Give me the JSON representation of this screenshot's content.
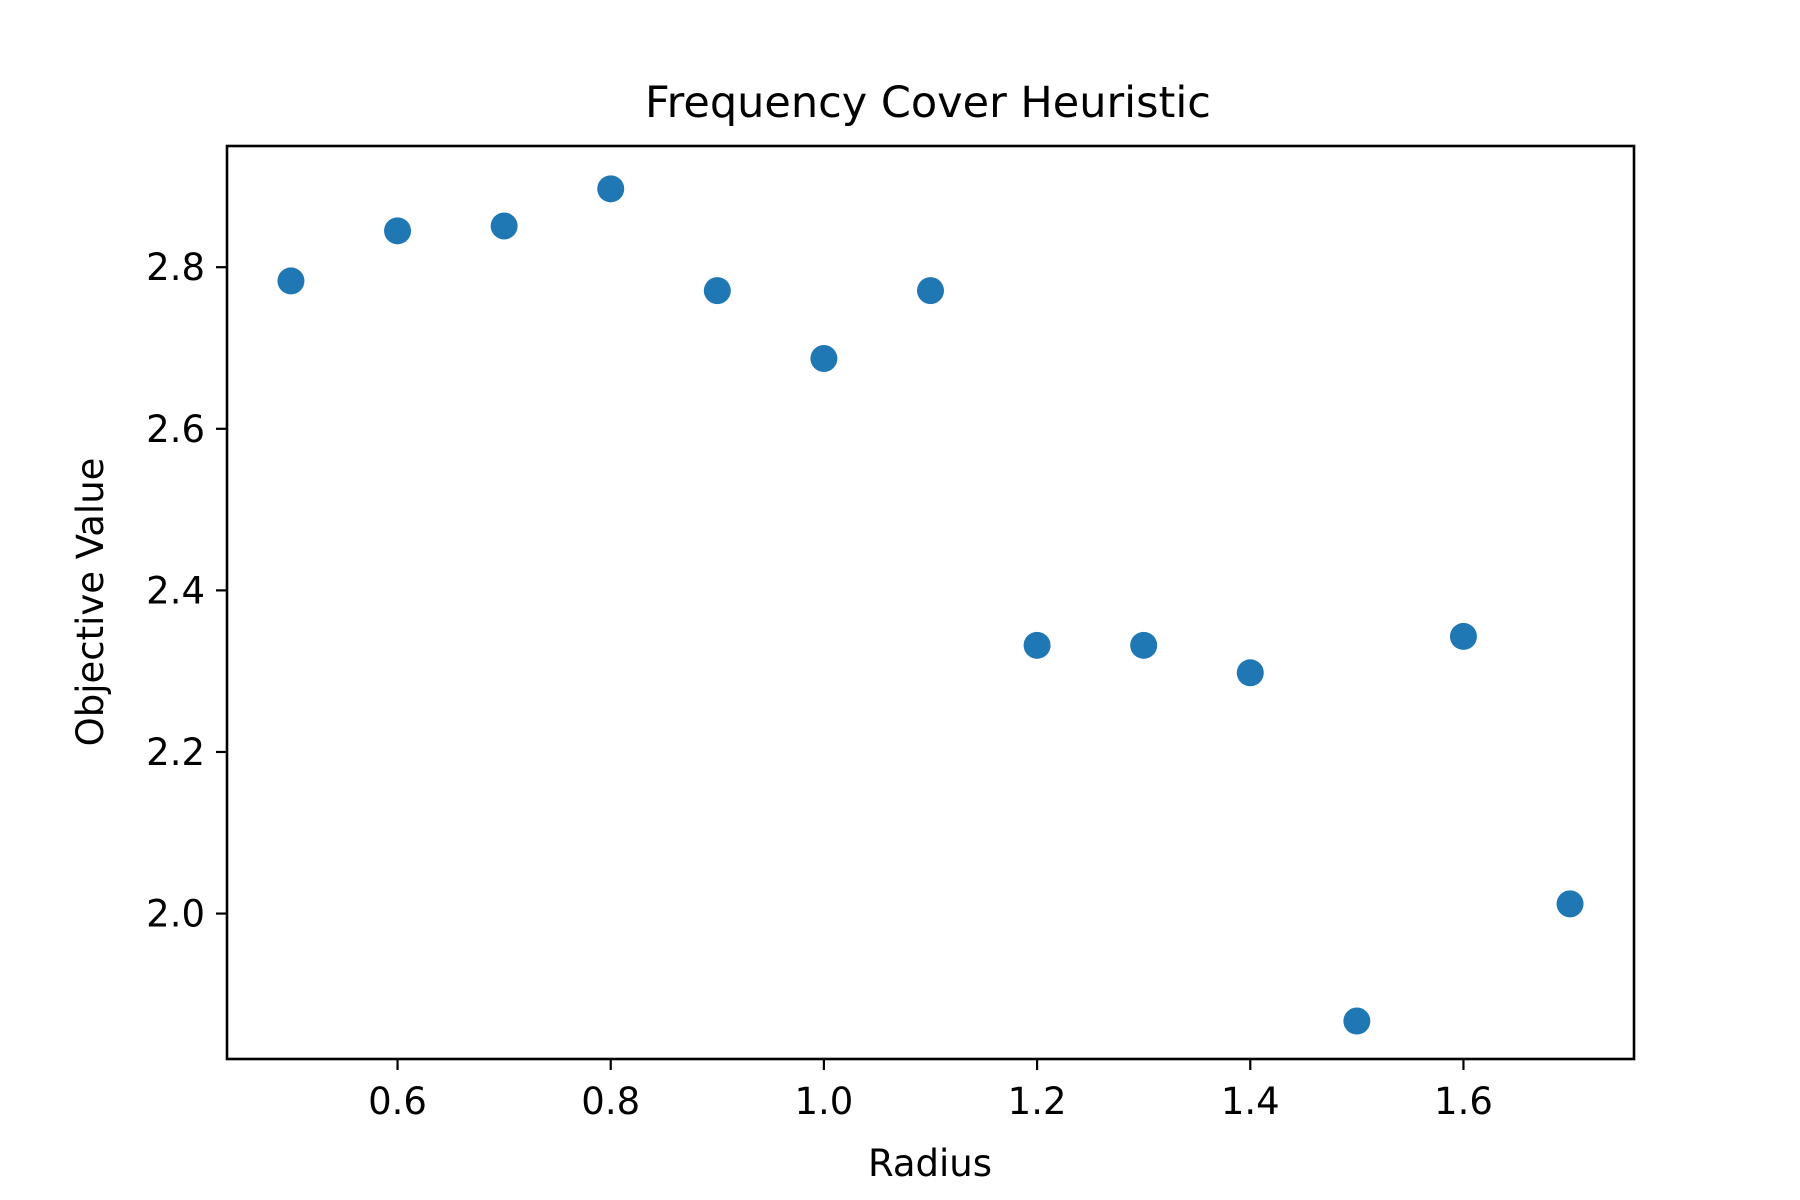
{
  "chart_data": {
    "type": "scatter",
    "title": "Frequency Cover Heuristic",
    "xlabel": "Radius",
    "ylabel": "Objective Value",
    "xlim": [
      0.44,
      1.76
    ],
    "ylim": [
      1.82,
      2.95
    ],
    "xticks": [
      0.6,
      0.8,
      1.0,
      1.2,
      1.4,
      1.6
    ],
    "xtick_labels": [
      "0.6",
      "0.8",
      "1.0",
      "1.2",
      "1.4",
      "1.6"
    ],
    "yticks": [
      2.0,
      2.2,
      2.4,
      2.6,
      2.8
    ],
    "ytick_labels": [
      "2.0",
      "2.2",
      "2.4",
      "2.6",
      "2.8"
    ],
    "grid": false,
    "legend": "none",
    "marker_color": "#1f77b4",
    "points": [
      {
        "x": 0.5,
        "y": 2.783
      },
      {
        "x": 0.6,
        "y": 2.845
      },
      {
        "x": 0.7,
        "y": 2.851
      },
      {
        "x": 0.8,
        "y": 2.897
      },
      {
        "x": 0.9,
        "y": 2.771
      },
      {
        "x": 1.0,
        "y": 2.687
      },
      {
        "x": 1.1,
        "y": 2.771
      },
      {
        "x": 1.2,
        "y": 2.332
      },
      {
        "x": 1.3,
        "y": 2.332
      },
      {
        "x": 1.4,
        "y": 2.298
      },
      {
        "x": 1.5,
        "y": 1.867
      },
      {
        "x": 1.6,
        "y": 2.343
      },
      {
        "x": 1.7,
        "y": 2.012
      }
    ]
  }
}
